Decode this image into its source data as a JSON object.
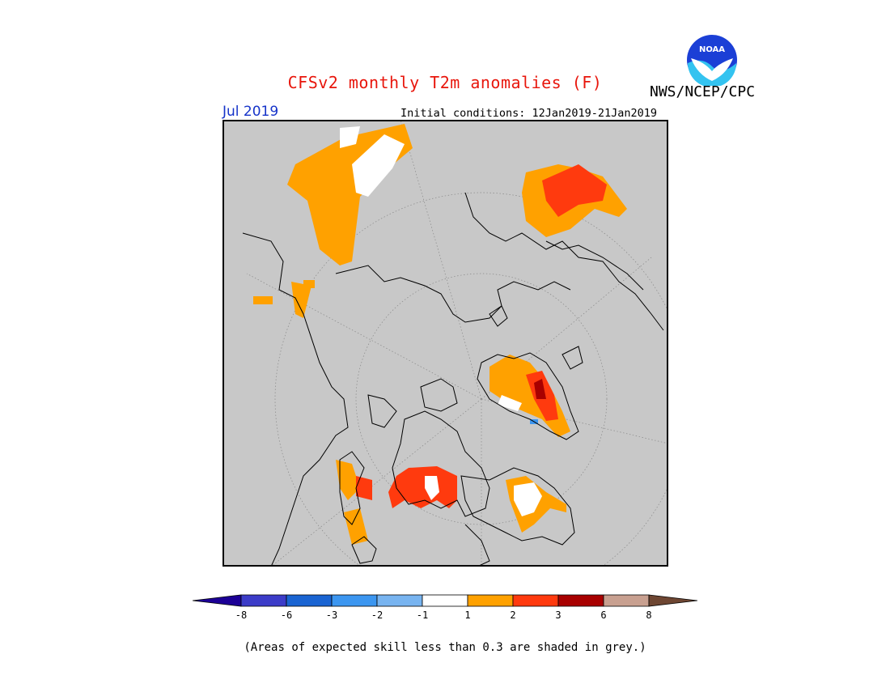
{
  "title": "CFSv2 monthly T2m anomalies (F)",
  "period": "Jul 2019",
  "initial_conditions": "Initial conditions: 12Jan2019-21Jan2019",
  "agency": "NWS/NCEP/CPC",
  "logo_text": "NOAA",
  "footnote": "(Areas of expected skill less than 0.3 are shaded in grey.)",
  "colors": {
    "title": "#e8160c",
    "period": "#1533c9",
    "no_skill": "#c8c8c8",
    "anom_1_2": "#ffa100",
    "anom_2_3": "#ff3a0e",
    "anom_3_6": "#a80000",
    "anom_neg1_1": "#ffffff"
  },
  "colorbar": {
    "colors": [
      "#1c0096",
      "#3c3cc8",
      "#1a64d2",
      "#3c96f0",
      "#78b4f0",
      "#ffffff",
      "#ffa100",
      "#ff3a0e",
      "#a80000",
      "#c8a090",
      "#6e4632"
    ],
    "tick_labels": [
      "-8",
      "-6",
      "-3",
      "-2",
      "-1",
      "1",
      "2",
      "3",
      "6",
      "8"
    ]
  }
}
